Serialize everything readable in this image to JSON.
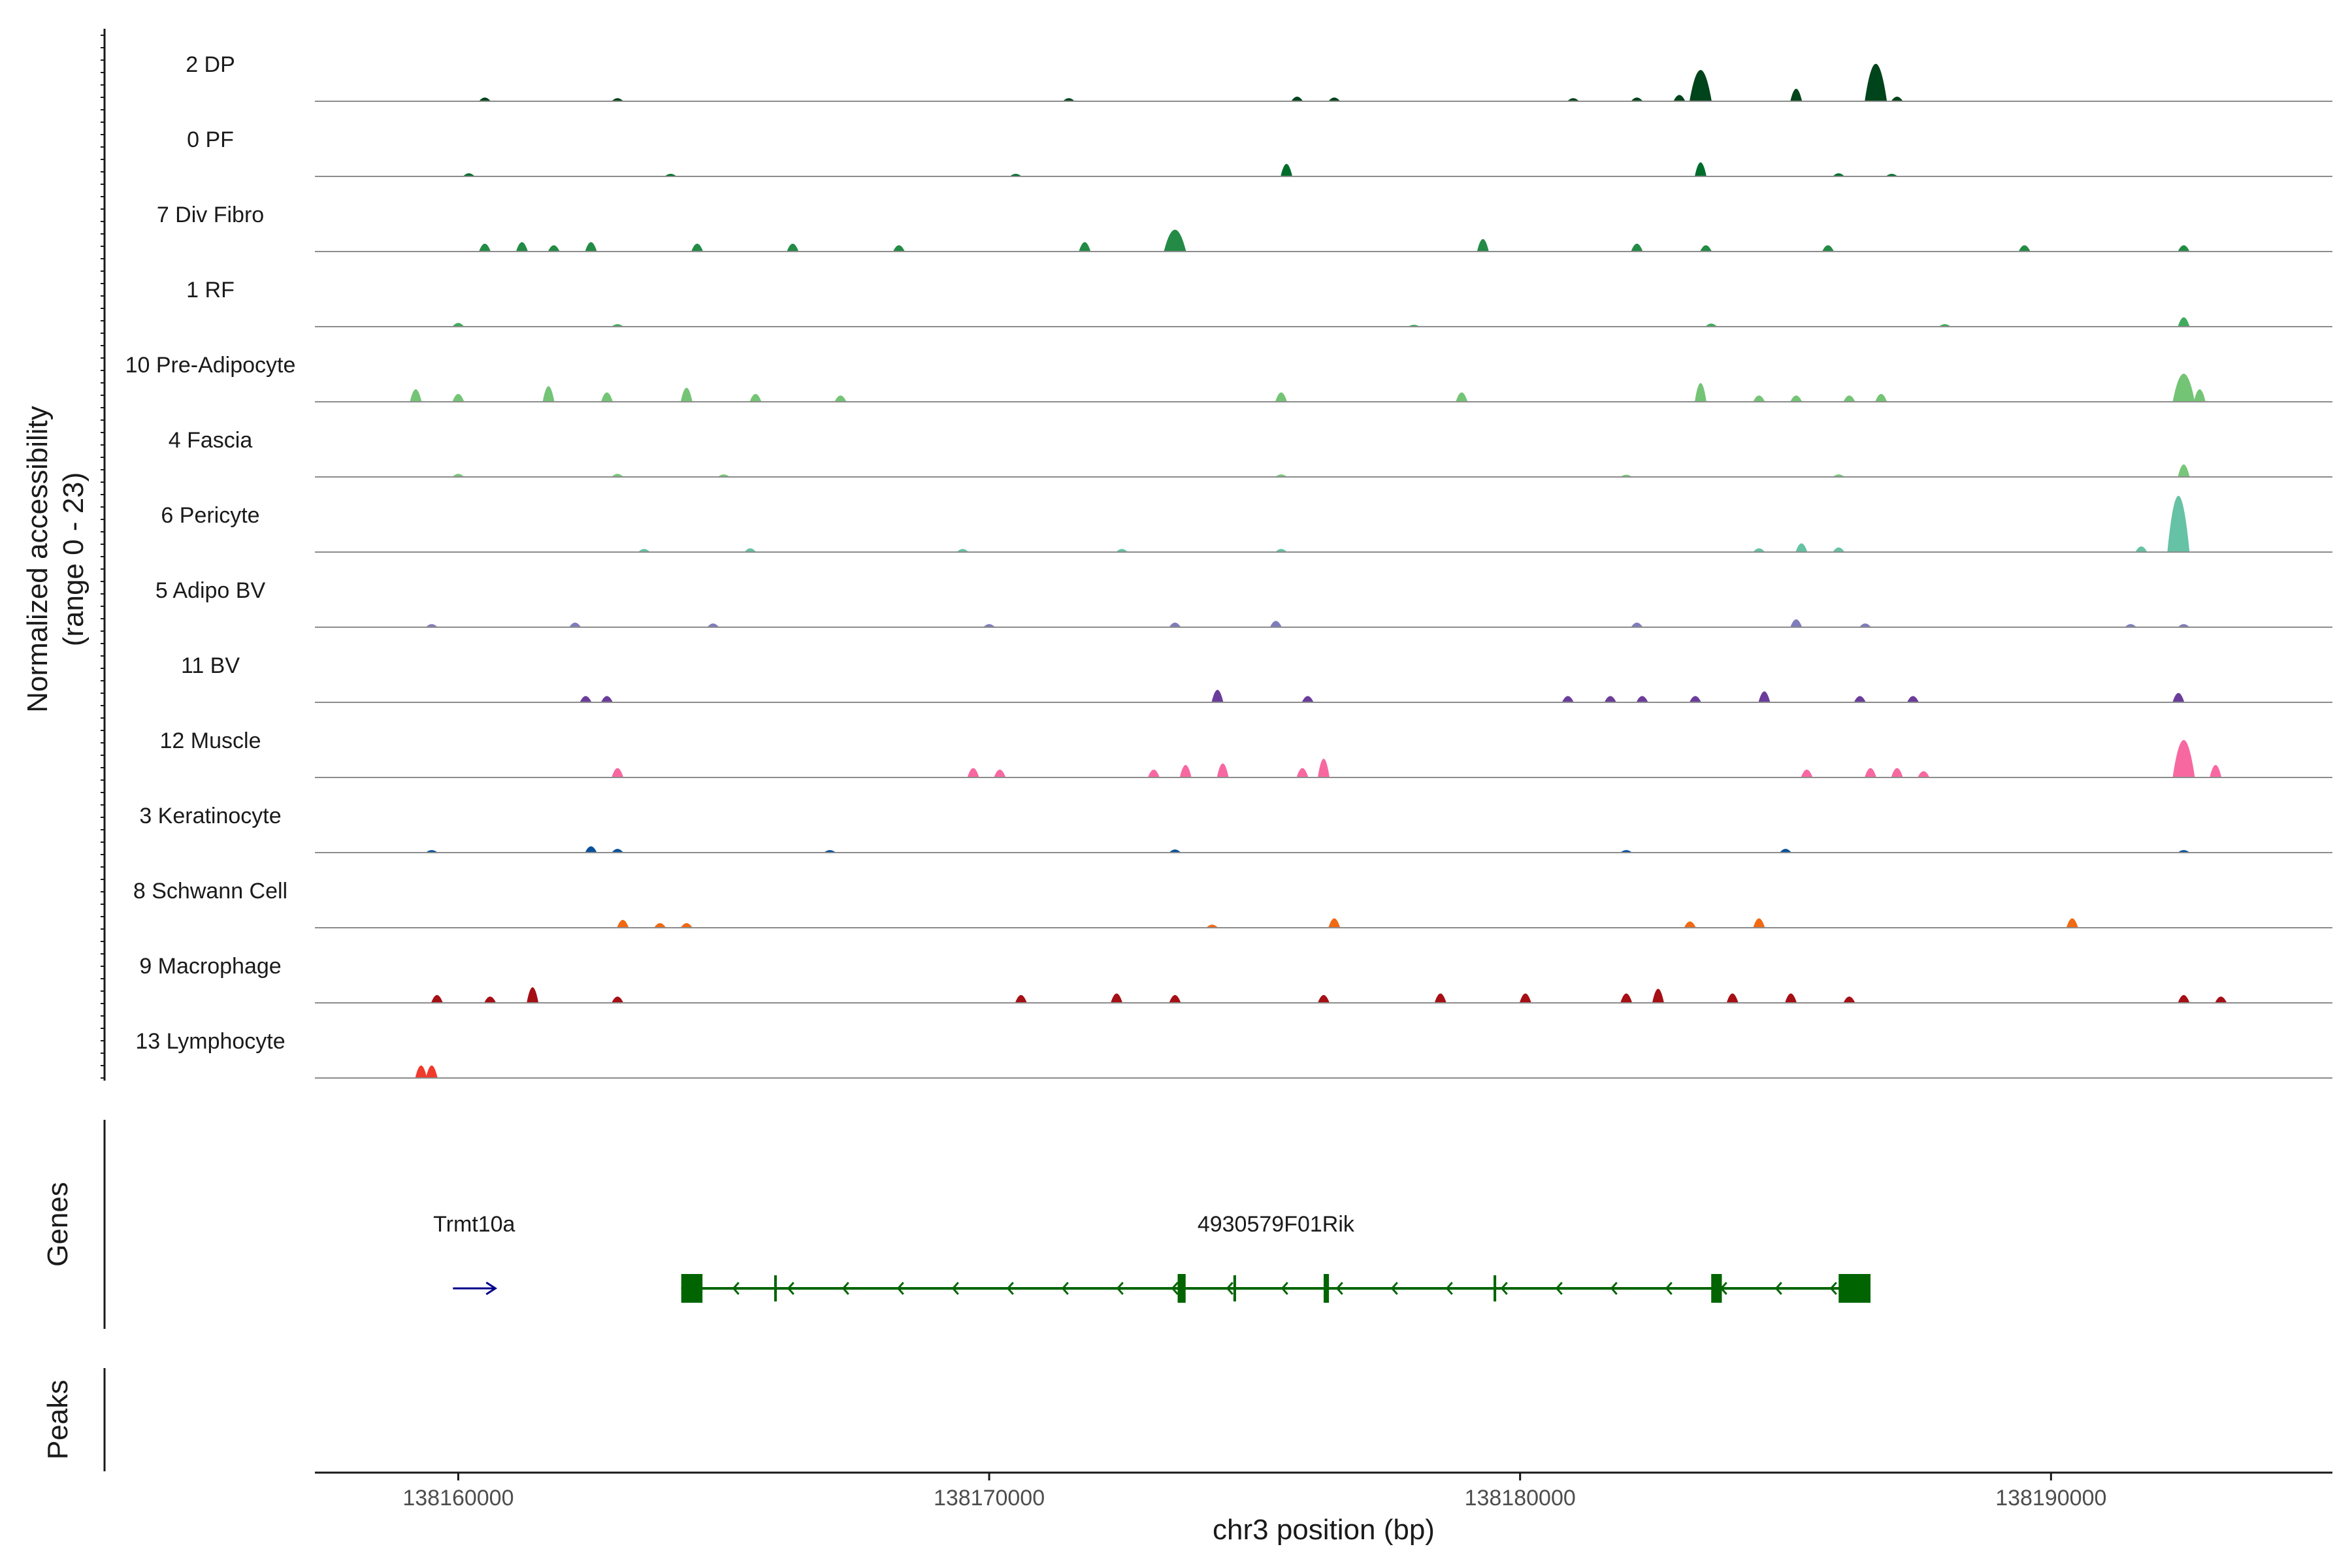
{
  "chart_data": {
    "type": "area",
    "title": "",
    "ylabel": "Normalized accessibility",
    "ylabel_range": "(range 0 - 23)",
    "ylim": [
      0,
      23
    ],
    "xlabel": "chr3 position (bp)",
    "xlim": [
      138157300,
      138195300
    ],
    "x_ticks": [
      138160000,
      138170000,
      138180000,
      138190000
    ],
    "x_tick_labels": [
      "138160000",
      "138170000",
      "138180000",
      "138190000"
    ],
    "tracks": [
      {
        "name": "2 DP",
        "color": "#00441b",
        "peaks": [
          [
            138160500,
            1.2
          ],
          [
            138163000,
            1
          ],
          [
            138171500,
            1
          ],
          [
            138175800,
            1.5
          ],
          [
            138176500,
            1.2
          ],
          [
            138181000,
            1
          ],
          [
            138182200,
            1.2
          ],
          [
            138183000,
            2
          ],
          [
            138183400,
            10
          ],
          [
            138185200,
            4
          ],
          [
            138186700,
            12
          ],
          [
            138187100,
            1.5
          ]
        ]
      },
      {
        "name": "0 PF",
        "color": "#006d2c",
        "peaks": [
          [
            138160200,
            1
          ],
          [
            138164000,
            0.8
          ],
          [
            138170500,
            0.8
          ],
          [
            138175600,
            4
          ],
          [
            138183400,
            4.5
          ],
          [
            138186000,
            1
          ],
          [
            138187000,
            0.8
          ]
        ]
      },
      {
        "name": "7 Div Fibro",
        "color": "#238b45",
        "peaks": [
          [
            138160500,
            2.5
          ],
          [
            138161200,
            3
          ],
          [
            138161800,
            2
          ],
          [
            138162500,
            3
          ],
          [
            138164500,
            2.5
          ],
          [
            138166300,
            2.5
          ],
          [
            138168300,
            2
          ],
          [
            138171800,
            3
          ],
          [
            138173500,
            7
          ],
          [
            138179300,
            4
          ],
          [
            138182200,
            2.5
          ],
          [
            138183500,
            2
          ],
          [
            138185800,
            2
          ],
          [
            138189500,
            2
          ],
          [
            138192500,
            2
          ]
        ]
      },
      {
        "name": "1 RF",
        "color": "#41ab5d",
        "peaks": [
          [
            138160000,
            1.2
          ],
          [
            138163000,
            0.8
          ],
          [
            138178000,
            0.6
          ],
          [
            138183600,
            1
          ],
          [
            138188000,
            0.8
          ],
          [
            138192500,
            3
          ]
        ]
      },
      {
        "name": "10 Pre-Adipocyte",
        "color": "#74c476",
        "peaks": [
          [
            138159200,
            4
          ],
          [
            138160000,
            2.5
          ],
          [
            138161700,
            5
          ],
          [
            138162800,
            3
          ],
          [
            138164300,
            4.5
          ],
          [
            138165600,
            2.5
          ],
          [
            138167200,
            2
          ],
          [
            138175500,
            3
          ],
          [
            138178900,
            3
          ],
          [
            138183400,
            6
          ],
          [
            138184500,
            2
          ],
          [
            138185200,
            2
          ],
          [
            138186200,
            2
          ],
          [
            138186800,
            2.5
          ],
          [
            138192500,
            9
          ],
          [
            138192800,
            4
          ]
        ]
      },
      {
        "name": "4 Fascia",
        "color": "#78c679",
        "peaks": [
          [
            138160000,
            1
          ],
          [
            138163000,
            1
          ],
          [
            138165000,
            0.8
          ],
          [
            138175500,
            0.8
          ],
          [
            138182000,
            0.7
          ],
          [
            138186000,
            0.8
          ],
          [
            138192500,
            4
          ]
        ]
      },
      {
        "name": "6 Pericyte",
        "color": "#66c2a4",
        "peaks": [
          [
            138163500,
            1
          ],
          [
            138165500,
            1.2
          ],
          [
            138169500,
            1
          ],
          [
            138172500,
            1
          ],
          [
            138175500,
            1
          ],
          [
            138184500,
            1.2
          ],
          [
            138185300,
            2.8
          ],
          [
            138186000,
            1.5
          ],
          [
            138191700,
            1.8
          ],
          [
            138192400,
            18
          ]
        ]
      },
      {
        "name": "5 Adipo BV",
        "color": "#807dba",
        "peaks": [
          [
            138159500,
            1
          ],
          [
            138162200,
            1.5
          ],
          [
            138164800,
            1.2
          ],
          [
            138170000,
            1
          ],
          [
            138173500,
            1.5
          ],
          [
            138175400,
            2
          ],
          [
            138182200,
            1.5
          ],
          [
            138185200,
            2.5
          ],
          [
            138186500,
            1.2
          ],
          [
            138191500,
            1
          ],
          [
            138192500,
            1
          ]
        ]
      },
      {
        "name": "11 BV",
        "color": "#6a3d9a",
        "peaks": [
          [
            138162400,
            2
          ],
          [
            138162800,
            2
          ],
          [
            138174300,
            4
          ],
          [
            138176000,
            2
          ],
          [
            138180900,
            2
          ],
          [
            138181700,
            2
          ],
          [
            138182300,
            2
          ],
          [
            138183300,
            2
          ],
          [
            138184600,
            3.5
          ],
          [
            138186400,
            2
          ],
          [
            138187400,
            2
          ],
          [
            138192400,
            3
          ]
        ]
      },
      {
        "name": "12 Muscle",
        "color": "#f768a1",
        "peaks": [
          [
            138163000,
            3
          ],
          [
            138169700,
            3
          ],
          [
            138170200,
            2.5
          ],
          [
            138173100,
            2.5
          ],
          [
            138173700,
            4
          ],
          [
            138174400,
            4.5
          ],
          [
            138175900,
            3
          ],
          [
            138176300,
            6
          ],
          [
            138185400,
            2.5
          ],
          [
            138186600,
            3
          ],
          [
            138187100,
            3
          ],
          [
            138187600,
            2
          ],
          [
            138192500,
            12
          ],
          [
            138193100,
            4
          ]
        ]
      },
      {
        "name": "3 Keratinocyte",
        "color": "#08519c",
        "peaks": [
          [
            138159500,
            0.8
          ],
          [
            138162500,
            2
          ],
          [
            138163000,
            1.2
          ],
          [
            138167000,
            0.8
          ],
          [
            138173500,
            1
          ],
          [
            138182000,
            0.8
          ],
          [
            138185000,
            1.2
          ],
          [
            138192500,
            0.8
          ]
        ]
      },
      {
        "name": "8 Schwann Cell",
        "color": "#f16913",
        "peaks": [
          [
            138163100,
            2.5
          ],
          [
            138163800,
            1.5
          ],
          [
            138164300,
            1.5
          ],
          [
            138174200,
            1
          ],
          [
            138176500,
            3
          ],
          [
            138183200,
            2
          ],
          [
            138184500,
            3
          ],
          [
            138190400,
            3
          ]
        ]
      },
      {
        "name": "9 Macrophage",
        "color": "#a50f15",
        "peaks": [
          [
            138159600,
            2.5
          ],
          [
            138160600,
            2
          ],
          [
            138161400,
            5
          ],
          [
            138163000,
            2
          ],
          [
            138170600,
            2.5
          ],
          [
            138172400,
            3
          ],
          [
            138173500,
            2.5
          ],
          [
            138176300,
            2.5
          ],
          [
            138178500,
            3
          ],
          [
            138180100,
            3
          ],
          [
            138182000,
            3
          ],
          [
            138182600,
            4.5
          ],
          [
            138184000,
            3
          ],
          [
            138185100,
            3
          ],
          [
            138186200,
            2
          ],
          [
            138192500,
            2.5
          ],
          [
            138193200,
            2
          ]
        ]
      },
      {
        "name": "13 Lymphocyte",
        "color": "#ef3b2c",
        "peaks": [
          [
            138159300,
            4
          ],
          [
            138159500,
            4
          ]
        ]
      }
    ],
    "genes_track_label": "Genes",
    "peaks_track_label": "Peaks",
    "genes": [
      {
        "name": "Trmt10a",
        "strand": "+",
        "color": "#00008b",
        "arrow_start": 138159900,
        "arrow_end": 138160700,
        "exons": []
      },
      {
        "name": "4930579F01Rik",
        "strand": "-",
        "color": "#006400",
        "start": 138164200,
        "end": 138186600,
        "exons": [
          [
            138164200,
            138164600
          ],
          [
            138165950,
            138166000
          ],
          [
            138173550,
            138173700
          ],
          [
            138174600,
            138174650
          ],
          [
            138176300,
            138176400
          ],
          [
            138179500,
            138179550
          ],
          [
            138183600,
            138183800
          ],
          [
            138186000,
            138186600
          ]
        ]
      }
    ]
  }
}
